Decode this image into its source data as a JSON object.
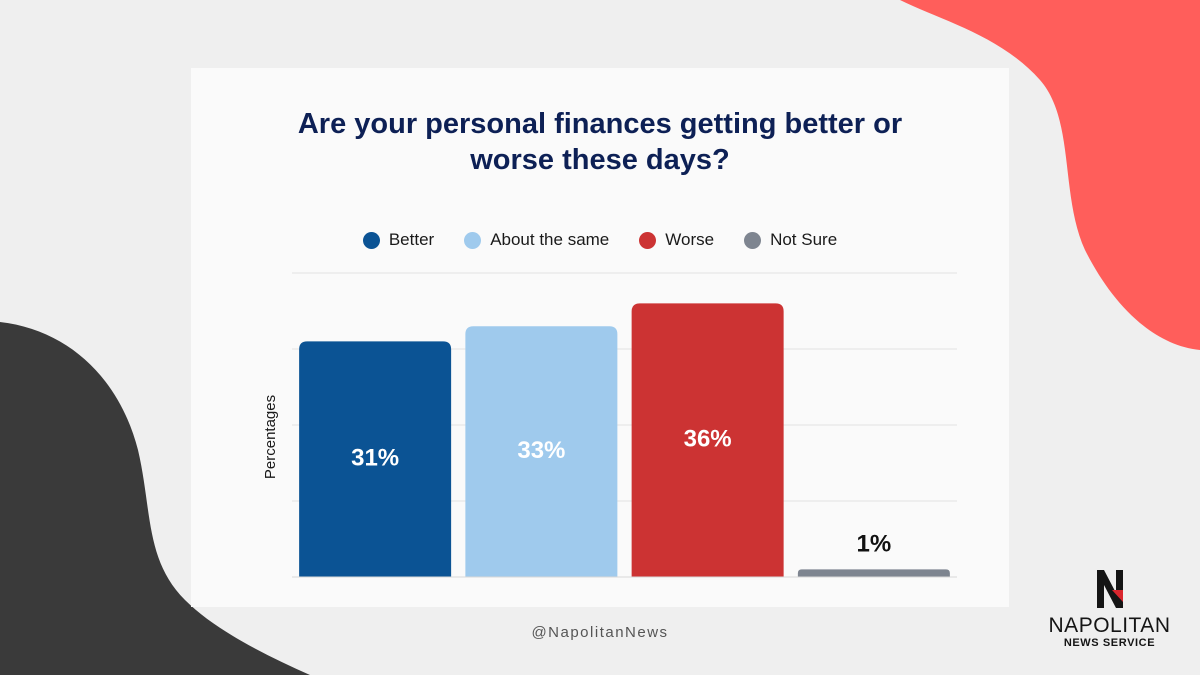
{
  "colors": {
    "background": "#efefef",
    "card": "#fafafa",
    "blob_coral": "#ff5e5b",
    "blob_dark": "#3a3a3a",
    "title": "#0d2055"
  },
  "chart_data": {
    "type": "bar",
    "title": "Are your personal finances getting better or worse these days?",
    "ylabel": "Percentages",
    "xlabel": "",
    "categories": [
      "Better",
      "About the same",
      "Worse",
      "Not Sure"
    ],
    "values": [
      31,
      33,
      36,
      1
    ],
    "labels": [
      "31%",
      "33%",
      "36%",
      "1%"
    ],
    "colors": [
      "#0b5394",
      "#9fcaed",
      "#cc3333",
      "#7e8590"
    ],
    "ylim": [
      0,
      40
    ],
    "grid": true,
    "legend_position": "top"
  },
  "footer": {
    "handle": "@NapolitanNews"
  },
  "logo": {
    "name": "NAPOLITAN",
    "subtitle": "NEWS SERVICE",
    "icon": "napolitan-n-icon"
  }
}
